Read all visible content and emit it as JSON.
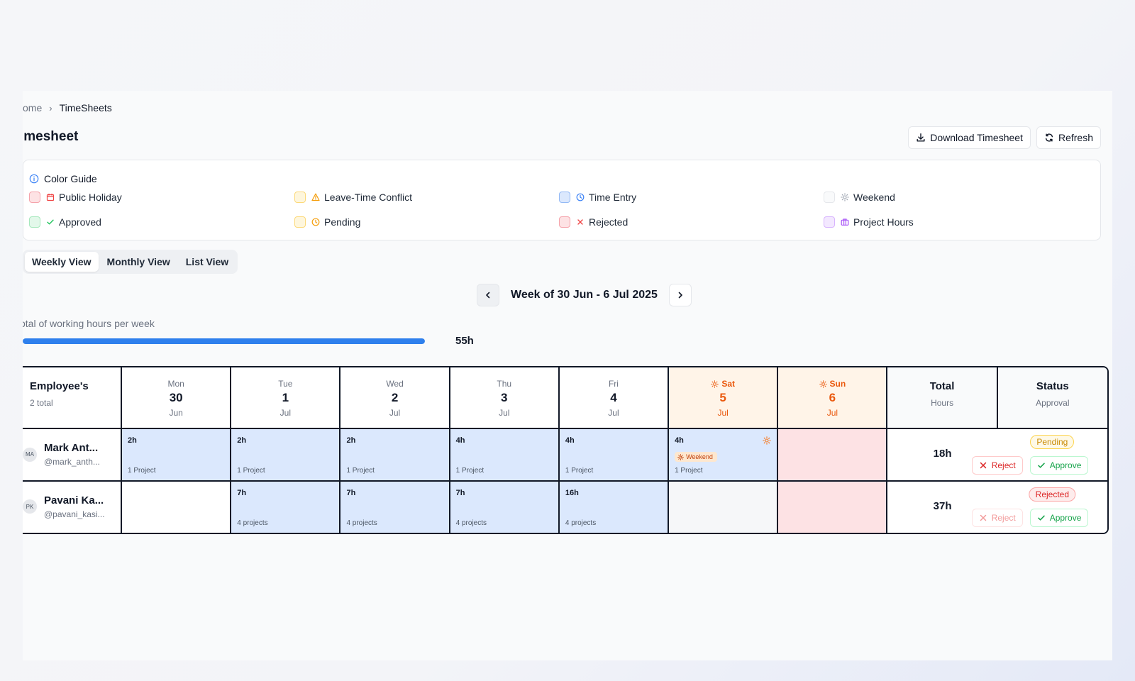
{
  "breadcrumb": {
    "home": "ome",
    "current": "TimeSheets"
  },
  "page": {
    "title": "imesheet"
  },
  "actions": {
    "download": "Download Timesheet",
    "refresh": "Refresh"
  },
  "color_guide": {
    "title": "Color Guide",
    "items": [
      {
        "label": "Public Holiday",
        "icon": "calendar-icon",
        "color": "#ef4444"
      },
      {
        "label": "Leave-Time Conflict",
        "icon": "warning-icon",
        "color": "#f59e0b"
      },
      {
        "label": "Time Entry",
        "icon": "clock-icon",
        "color": "#3b82f6"
      },
      {
        "label": "Weekend",
        "icon": "sun-icon",
        "color": "#9ca3af"
      },
      {
        "label": "Approved",
        "icon": "check-icon",
        "color": "#22c55e"
      },
      {
        "label": "Pending",
        "icon": "clock-icon",
        "color": "#f59e0b"
      },
      {
        "label": "Rejected",
        "icon": "x-icon",
        "color": "#ef4444"
      },
      {
        "label": "Project Hours",
        "icon": "briefcase-icon",
        "color": "#a855f7"
      }
    ]
  },
  "views": {
    "tabs": [
      "Weekly View",
      "Monthly View",
      "List View"
    ],
    "active": "Weekly View"
  },
  "week": {
    "label": "Week of 30 Jun - 6 Jul 2025"
  },
  "hours_summary": {
    "label": "otal of working hours per week",
    "value": "55h",
    "progress_percent": 100
  },
  "grid": {
    "employee_header": {
      "title": "Employee's",
      "subtitle": "2 total"
    },
    "days": [
      {
        "name": "Mon",
        "date": "30",
        "month": "Jun",
        "weekend": false
      },
      {
        "name": "Tue",
        "date": "1",
        "month": "Jul",
        "weekend": false
      },
      {
        "name": "Wed",
        "date": "2",
        "month": "Jul",
        "weekend": false
      },
      {
        "name": "Thu",
        "date": "3",
        "month": "Jul",
        "weekend": false
      },
      {
        "name": "Fri",
        "date": "4",
        "month": "Jul",
        "weekend": false
      },
      {
        "name": "Sat",
        "date": "5",
        "month": "Jul",
        "weekend": true
      },
      {
        "name": "Sun",
        "date": "6",
        "month": "Jul",
        "weekend": true
      }
    ],
    "total_header": {
      "title": "Total",
      "subtitle": "Hours"
    },
    "status_header": {
      "title": "Status",
      "subtitle": "Approval"
    },
    "rows": [
      {
        "initials": "MA",
        "name": "Mark Ant...",
        "handle": "@mark_anth...",
        "cells": [
          {
            "hours": "2h",
            "projects": "1 Project"
          },
          {
            "hours": "2h",
            "projects": "1 Project"
          },
          {
            "hours": "2h",
            "projects": "1 Project"
          },
          {
            "hours": "4h",
            "projects": "1 Project"
          },
          {
            "hours": "4h",
            "projects": "1 Project"
          },
          {
            "hours": "4h",
            "projects": "1 Project",
            "badge": "Weekend"
          },
          {
            "hours": "",
            "projects": ""
          }
        ],
        "total": "18h",
        "status": "Pending",
        "reject": "Reject",
        "approve": "Approve"
      },
      {
        "initials": "PK",
        "name": "Pavani Ka...",
        "handle": "@pavani_kasi...",
        "cells": [
          {
            "hours": "",
            "projects": ""
          },
          {
            "hours": "7h",
            "projects": "4 projects"
          },
          {
            "hours": "7h",
            "projects": "4 projects"
          },
          {
            "hours": "7h",
            "projects": "4 projects"
          },
          {
            "hours": "16h",
            "projects": "4 projects"
          },
          {
            "hours": "",
            "projects": ""
          },
          {
            "hours": "",
            "projects": ""
          }
        ],
        "total": "37h",
        "status": "Rejected",
        "reject": "Reject",
        "approve": "Approve"
      }
    ]
  }
}
